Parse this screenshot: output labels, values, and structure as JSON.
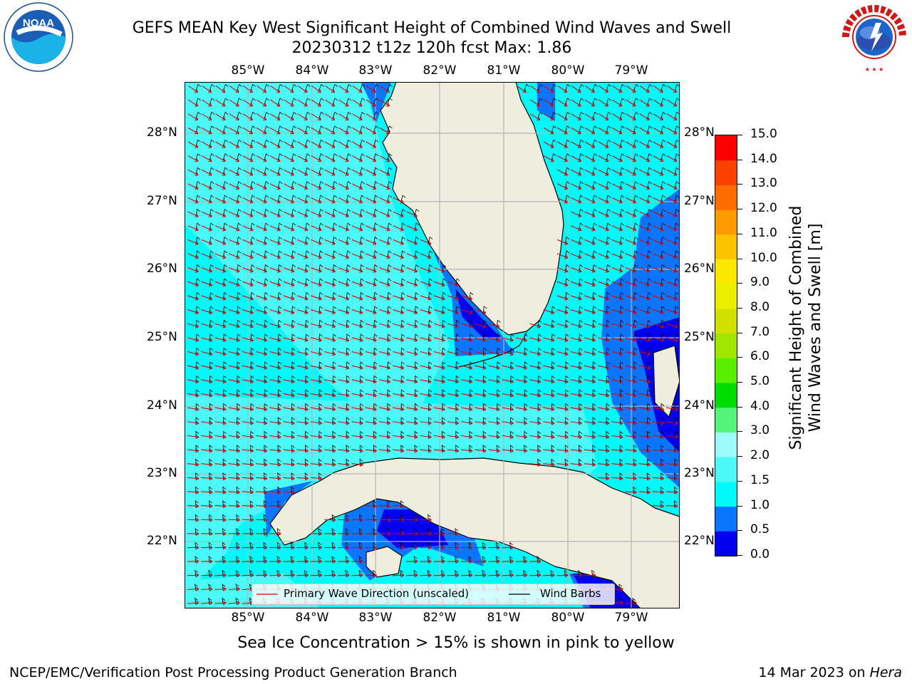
{
  "header": {
    "title_line1": "GEFS MEAN Key West Significant Height of Combined Wind Waves and Swell",
    "title_line2": "20230312 t12z 120h fcst   Max: 1.86"
  },
  "logos": {
    "noaa": {
      "text": "NOAA",
      "ring_text": "NATIONAL OCEANIC AND ATMOSPHERIC ADMINISTRATION · U.S. DEPARTMENT OF COMMERCE"
    },
    "nws": {
      "ring_text": "NATIONAL WEATHER SERVICE"
    }
  },
  "map": {
    "lon_labels": [
      "85°W",
      "84°W",
      "83°W",
      "82°W",
      "81°W",
      "80°W",
      "79°W"
    ],
    "lat_labels": [
      "28°N",
      "27°N",
      "26°N",
      "25°N",
      "24°N",
      "23°N",
      "22°N"
    ],
    "colors": {
      "land": "#efedde",
      "coast": "#000000",
      "grid": "#b4b4b4",
      "arrow": "#e00000",
      "barb": "#000000"
    }
  },
  "legend": {
    "wave_label": "Primary Wave Direction (unscaled)",
    "barb_label": "Wind Barbs"
  },
  "colorbar": {
    "label_line1": "Significant Height of Combined",
    "label_line2": "Wind Waves and Swell [m]",
    "ticks": [
      "0.0",
      "0.5",
      "1.0",
      "1.5",
      "2.0",
      "3.0",
      "4.0",
      "5.0",
      "6.0",
      "7.0",
      "8.0",
      "9.0",
      "10.0",
      "11.0",
      "12.0",
      "13.0",
      "14.0",
      "15.0"
    ],
    "colors": [
      "#0000ee",
      "#0a76ff",
      "#00fafa",
      "#4cf9f9",
      "#9cfaf8",
      "#54f47c",
      "#00dc00",
      "#58f000",
      "#a0e600",
      "#d2e000",
      "#ecee00",
      "#fae800",
      "#fcc400",
      "#fc9c00",
      "#fc6c00",
      "#fc4000",
      "#fc0000"
    ]
  },
  "footer": {
    "caption": "Sea Ice Concentration > 15% is shown in pink to yellow",
    "left": "NCEP/EMC/Verification Post Processing Product Generation Branch",
    "right_date": "14 Mar 2023 on ",
    "right_host": "Hera"
  }
}
